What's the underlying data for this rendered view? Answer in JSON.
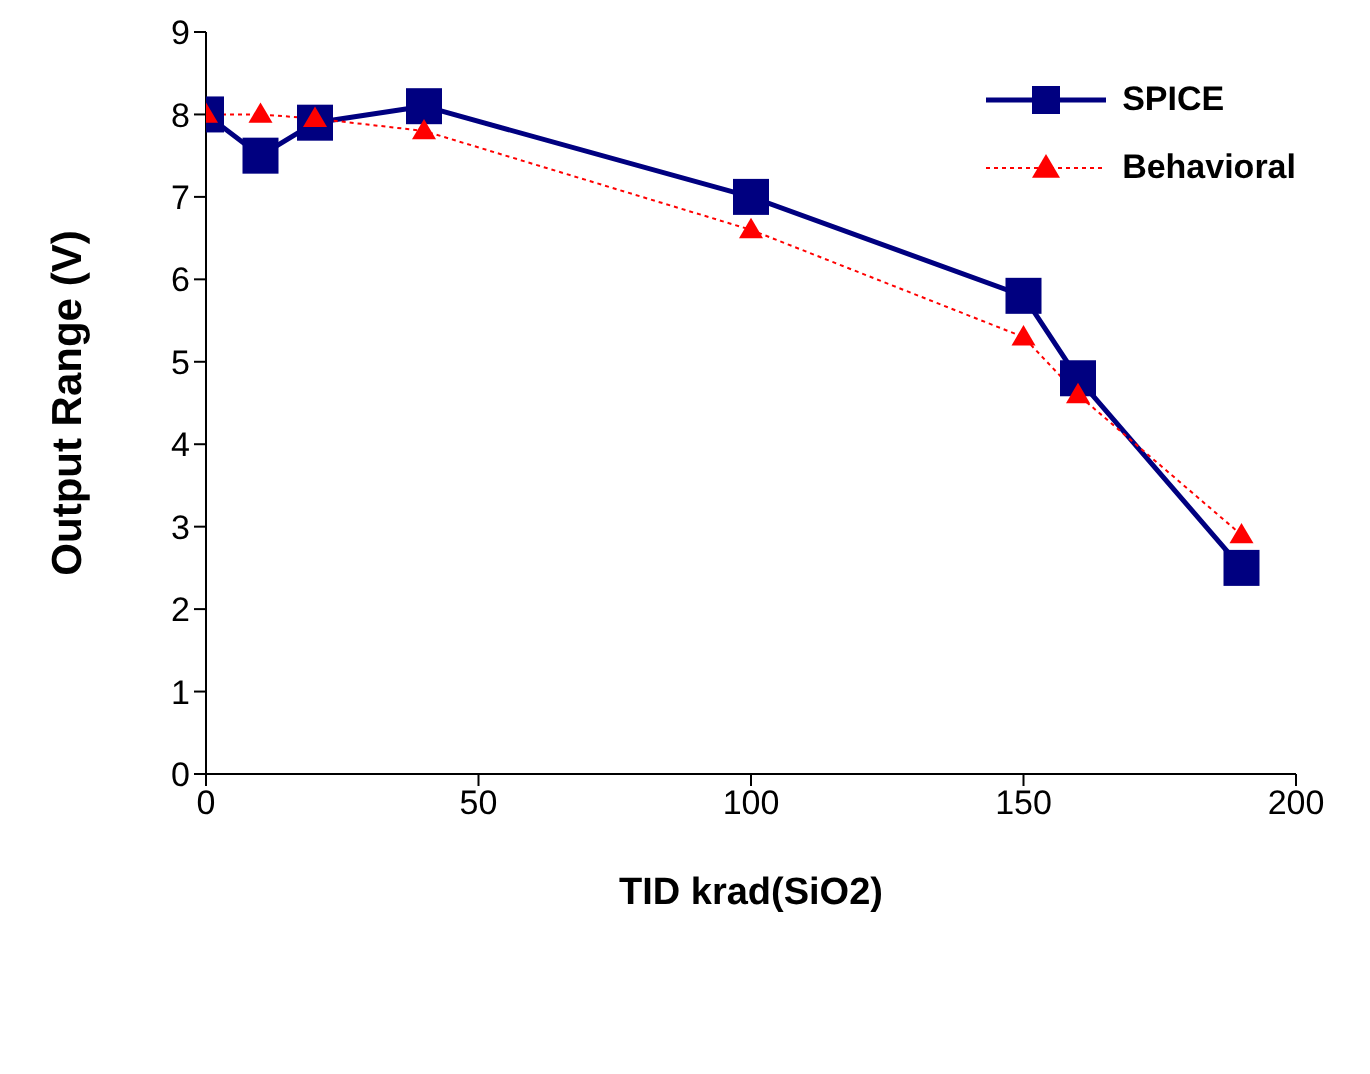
{
  "chart_data": {
    "type": "line",
    "xlabel": "TID krad(SiO2)",
    "ylabel": "Output Range (V)",
    "xlim": [
      0,
      200
    ],
    "xticks": [
      0,
      50,
      100,
      150,
      200
    ],
    "ylim": [
      0,
      9
    ],
    "yticks": [
      0,
      1,
      2,
      3,
      4,
      5,
      6,
      7,
      8,
      9
    ],
    "grid": false,
    "legend": "top right",
    "series": [
      {
        "name": "SPICE",
        "color": "#000080",
        "marker": "square",
        "line_style": "solid",
        "x": [
          0,
          10,
          20,
          40,
          100,
          150,
          160,
          190
        ],
        "values": [
          8.0,
          7.5,
          7.9,
          8.1,
          7.0,
          5.8,
          4.8,
          2.5
        ]
      },
      {
        "name": "Behavioral",
        "color": "#ff0000",
        "marker": "triangle",
        "line_style": "dotted",
        "x": [
          0,
          10,
          20,
          40,
          100,
          150,
          160,
          190
        ],
        "values": [
          8.0,
          8.0,
          7.95,
          7.8,
          6.6,
          5.3,
          4.6,
          2.9
        ]
      }
    ]
  }
}
